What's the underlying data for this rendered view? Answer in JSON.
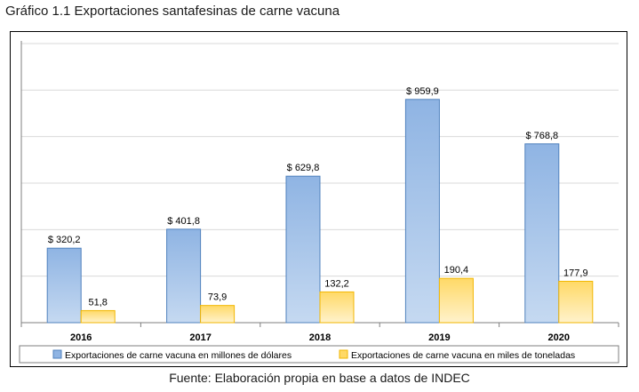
{
  "title": "Gráfico 1.1 Exportaciones santafesinas de carne vacuna",
  "source": "Fuente: Elaboración propia en base a datos de INDEC",
  "chart_data": {
    "type": "bar",
    "categories": [
      "2016",
      "2017",
      "2018",
      "2019",
      "2020"
    ],
    "series": [
      {
        "name": "Exportaciones de carne vacuna en millones de dólares",
        "values": [
          320.2,
          401.8,
          629.8,
          959.9,
          768.8
        ],
        "labels": [
          "$ 320,2",
          "$ 401,8",
          "$ 629,8",
          "$ 959,9",
          "$ 768,8"
        ],
        "color": "#8fb4e3",
        "color_light": "#c5d9f1",
        "stroke": "#4f81bd"
      },
      {
        "name": "Exportaciones de carne vacuna en miles de toneladas",
        "values": [
          51.8,
          73.9,
          132.2,
          190.4,
          177.9
        ],
        "labels": [
          "51,8",
          "73,9",
          "132,2",
          "190,4",
          "177,9"
        ],
        "color": "#ffd966",
        "color_light": "#fff2cc",
        "stroke": "#f2b600"
      }
    ],
    "ylim": [
      0,
      1200
    ],
    "grid": true,
    "legend": "bottom"
  }
}
